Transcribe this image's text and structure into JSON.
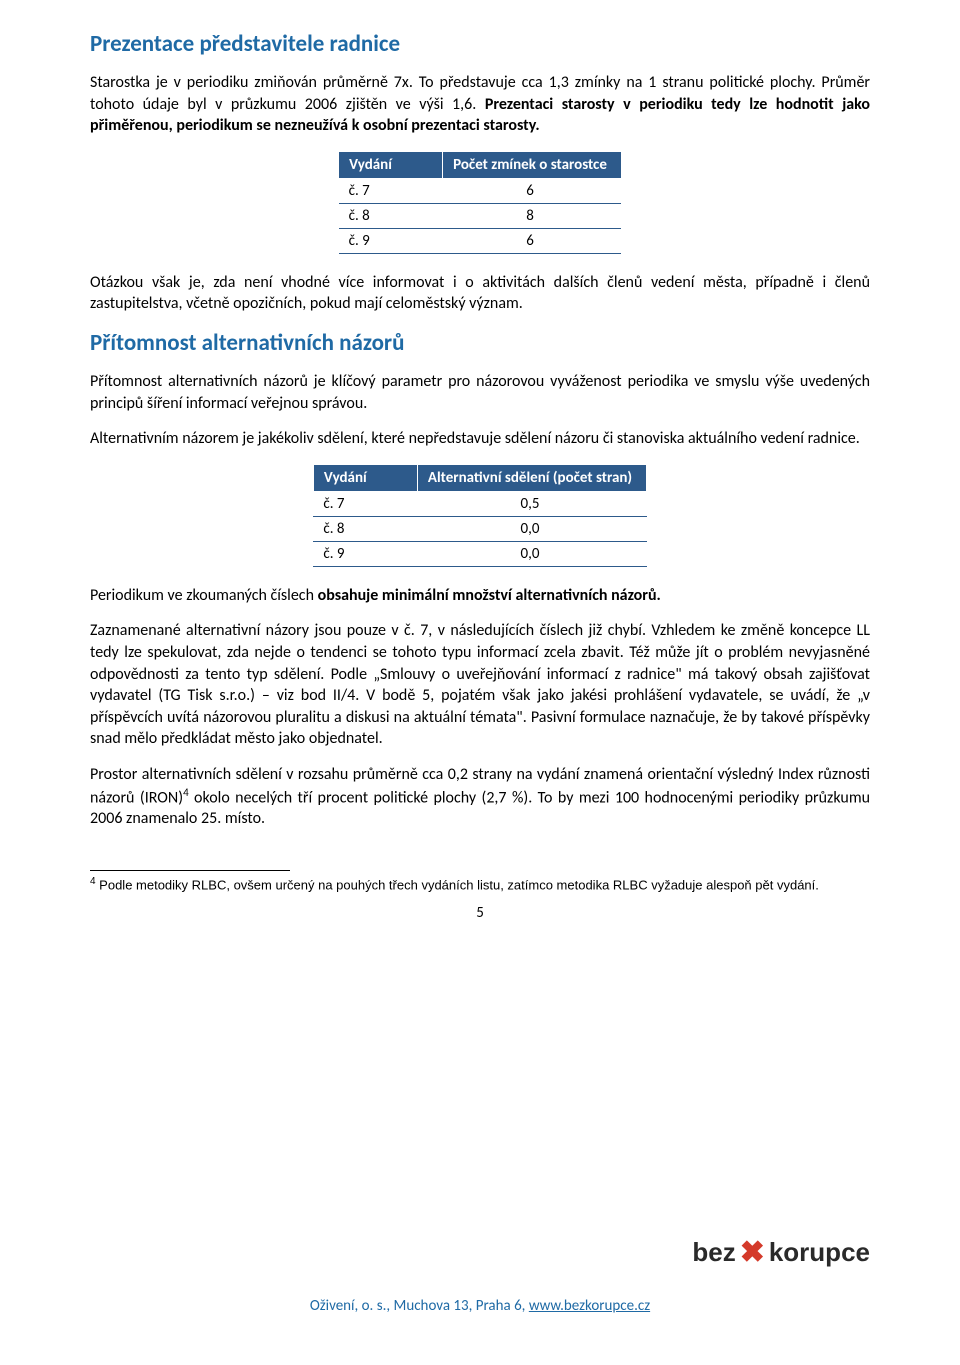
{
  "section1": {
    "heading": "Prezentace představitele radnice",
    "para1_a": "Starostka je v periodiku zmiňován průměrně 7x. To představuje cca 1,3 zmínky na 1 stranu politické plochy. Průměr tohoto údaje byl v průzkumu 2006 zjištěn ve výši 1,6. ",
    "para1_b": "Prezentaci starosty v periodiku tedy lze hodnotit jako přiměřenou, periodikum se nezneužívá k osobní prezentaci starosty.",
    "table": {
      "header_col1": "Vydání",
      "header_col2": "Počet zmínek o starostce",
      "rows": [
        {
          "c1": "č. 7",
          "c2": "6"
        },
        {
          "c1": "č. 8",
          "c2": "8"
        },
        {
          "c1": "č. 9",
          "c2": "6"
        }
      ]
    },
    "para2": "Otázkou však je, zda není vhodné více informovat i o aktivitách dalších členů vedení města, případně i členů zastupitelstva, včetně opozičních, pokud mají celoměstský význam."
  },
  "section2": {
    "heading": "Přítomnost alternativních názorů",
    "para1": "Přítomnost alternativních názorů je klíčový parametr pro názorovou vyváženost periodika ve smyslu výše uvedených principů šíření informací veřejnou správou.",
    "para2": "Alternativním názorem je jakékoliv sdělení, které nepředstavuje sdělení názoru či stanoviska aktuálního vedení radnice.",
    "table": {
      "header_col1": "Vydání",
      "header_col2": "Alternativní sdělení (počet stran)",
      "rows": [
        {
          "c1": "č. 7",
          "c2": "0,5"
        },
        {
          "c1": "č. 8",
          "c2": "0,0"
        },
        {
          "c1": "č. 9",
          "c2": "0,0"
        }
      ]
    },
    "para3_a": "Periodikum ve zkoumaných číslech ",
    "para3_b": "obsahuje minimální množství alternativních názorů.",
    "para4": "Zaznamenané alternativní názory jsou pouze v č. 7, v následujících číslech již chybí. Vzhledem ke změně koncepce LL tedy lze spekulovat, zda nejde o tendenci se tohoto typu informací zcela zbavit. Též může jít o problém nevyjasněné odpovědnosti za tento typ sdělení. Podle „Smlouvy o uveřejňování informací z radnice\" má takový obsah zajišťovat vydavatel (TG Tisk s.r.o.) – viz bod II/4. V bodě 5, pojatém však jako jakési prohlášení vydavatele, se uvádí, že „v příspěvcích uvítá názorovou pluralitu a diskusi na aktuální témata\". Pasivní formulace naznačuje, že by takové příspěvky snad mělo předkládat město jako objednatel.",
    "para5_a": "Prostor alternativních sdělení v rozsahu průměrně cca 0,2 strany na vydání znamená orientační výsledný Index různosti názorů (IRON)",
    "para5_sup": "4",
    "para5_b": " okolo necelých tří procent politické plochy (2,7 %). To by mezi 100 hodnocenými periodiky průzkumu 2006 znamenalo 25. místo."
  },
  "footnote": {
    "num": "4",
    "text": " Podle metodiky RLBC, ovšem určený na pouhých třech vydáních listu, zatímco metodika RLBC vyžaduje alespoň pět vydání."
  },
  "page_number": "5",
  "logo": {
    "pre": "bez",
    "x": "✖",
    "post": "korupce"
  },
  "footer": {
    "text_a": "Oživení, o. s., Muchova 13, Praha 6, ",
    "link": "www.bezkorupce.cz"
  },
  "colors": {
    "heading": "#1f6aa5",
    "table_header_bg": "#2d5a8b",
    "table_header_fg": "#ffffff",
    "table_border": "#2d5a8b",
    "logo_x": "#d43a2a",
    "footer_text": "#1f6aa5"
  }
}
